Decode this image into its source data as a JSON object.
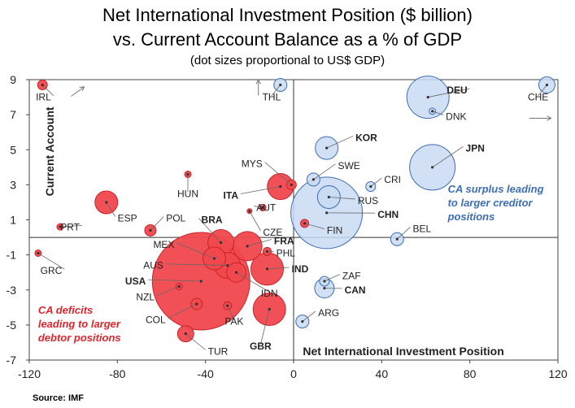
{
  "title_line1": "Net International Investment Position ($ billion)",
  "title_line2": "vs. Current Account Balance as a % of GDP",
  "subtitle": "(dot sizes proportional to US$ GDP)",
  "source": "Source: IMF",
  "chart_data": {
    "type": "scatter",
    "xlabel": "Net International Investment Position",
    "ylabel": "Current Account",
    "xlim": [
      -120,
      120
    ],
    "ylim": [
      -7,
      9
    ],
    "xticks": [
      -120,
      -80,
      -40,
      0,
      40,
      80,
      120
    ],
    "yticks": [
      -7,
      -5,
      -3,
      -1,
      1,
      3,
      5,
      7,
      9
    ],
    "grid": false,
    "quadrant_lines": {
      "x": 0,
      "y": 0
    },
    "colors": {
      "deficit_fill": "#f0484d",
      "deficit_stroke": "#c8252b",
      "surplus_fill": "#c9daf2",
      "surplus_stroke": "#3d6eb4",
      "annotation_deficit": "#e0262c",
      "annotation_surplus": "#3d6eb4"
    },
    "annotations": [
      {
        "text": "CA surplus leading",
        "group": "surplus"
      },
      {
        "text": "to larger creditor",
        "group": "surplus"
      },
      {
        "text": "positions",
        "group": "surplus"
      },
      {
        "text": "CA deficits",
        "group": "deficit"
      },
      {
        "text": "leading  to larger",
        "group": "deficit"
      },
      {
        "text": "debtor positions",
        "group": "deficit"
      }
    ],
    "points": [
      {
        "label": "IRL",
        "x": -114,
        "y": 8.7,
        "r": 6,
        "group": "deficit",
        "bold": false,
        "lx": -109,
        "ly": 7.9,
        "anchor": "end"
      },
      {
        "label": "GRC",
        "x": -116,
        "y": -0.9,
        "r": 4,
        "group": "deficit",
        "bold": false,
        "lx": -104,
        "ly": -2.0,
        "anchor": "end"
      },
      {
        "label": "PRT",
        "x": -106,
        "y": 0.6,
        "r": 4,
        "group": "deficit",
        "bold": false,
        "lx": -96,
        "ly": 0.5,
        "anchor": "end"
      },
      {
        "label": "ESP",
        "x": -85,
        "y": 2.0,
        "r": 14,
        "group": "deficit",
        "bold": false,
        "lx": -81,
        "ly": 1.0,
        "anchor": "start"
      },
      {
        "label": "POL",
        "x": -65,
        "y": 0.4,
        "r": 7,
        "group": "deficit",
        "bold": false,
        "lx": -59,
        "ly": 1.0,
        "anchor": "start"
      },
      {
        "label": "HUN",
        "x": -48,
        "y": 3.6,
        "r": 4,
        "group": "deficit",
        "bold": false,
        "lx": -48,
        "ly": 2.4,
        "anchor": "middle"
      },
      {
        "label": "BRA",
        "x": -33,
        "y": -0.3,
        "r": 16,
        "group": "deficit",
        "bold": true,
        "lx": -43,
        "ly": 0.9,
        "anchor": "start"
      },
      {
        "label": "ITA",
        "x": -6,
        "y": 2.9,
        "r": 16,
        "group": "deficit",
        "bold": true,
        "lx": -24,
        "ly": 2.3,
        "anchor": "end"
      },
      {
        "label": "MYS",
        "x": -1,
        "y": 3.0,
        "r": 6,
        "group": "deficit",
        "bold": false,
        "lx": -13,
        "ly": 4.1,
        "anchor": "end"
      },
      {
        "label": "AUT",
        "x": -14,
        "y": 1.7,
        "r": 4,
        "group": "deficit",
        "bold": false,
        "lx": -18,
        "ly": 1.6,
        "anchor": "start"
      },
      {
        "label": "CZE",
        "x": -20,
        "y": 1.5,
        "r": 3,
        "group": "deficit",
        "bold": false,
        "lx": -15,
        "ly": 0.2,
        "anchor": "start"
      },
      {
        "label": "FRA",
        "x": -21,
        "y": -0.5,
        "r": 18,
        "group": "deficit",
        "bold": true,
        "lx": -10,
        "ly": -0.3,
        "anchor": "start"
      },
      {
        "label": "PHL",
        "x": -12,
        "y": -0.8,
        "r": 5,
        "group": "deficit",
        "bold": false,
        "lx": -9,
        "ly": -1.0,
        "anchor": "start"
      },
      {
        "label": "MEX",
        "x": -36,
        "y": -1.2,
        "r": 14,
        "group": "deficit",
        "bold": false,
        "lx": -53,
        "ly": -0.5,
        "anchor": "end"
      },
      {
        "label": "AUS",
        "x": -30,
        "y": -1.6,
        "r": 16,
        "group": "deficit",
        "bold": false,
        "lx": -58,
        "ly": -1.7,
        "anchor": "end"
      },
      {
        "label": "IND",
        "x": -12,
        "y": -1.8,
        "r": 20,
        "group": "deficit",
        "bold": true,
        "lx": -2,
        "ly": -1.9,
        "anchor": "start"
      },
      {
        "label": "IDN",
        "x": -26,
        "y": -2.0,
        "r": 12,
        "group": "deficit",
        "bold": false,
        "lx": -11,
        "ly": -3.3,
        "anchor": "middle"
      },
      {
        "label": "USA",
        "x": -42,
        "y": -2.5,
        "r": 60,
        "group": "deficit",
        "bold": true,
        "lx": -66,
        "ly": -2.6,
        "anchor": "end"
      },
      {
        "label": "NZL",
        "x": -52,
        "y": -2.8,
        "r": 4,
        "group": "deficit",
        "bold": false,
        "lx": -62,
        "ly": -3.5,
        "anchor": "end"
      },
      {
        "label": "COL",
        "x": -44,
        "y": -3.8,
        "r": 7,
        "group": "deficit",
        "bold": false,
        "lx": -57,
        "ly": -4.8,
        "anchor": "end"
      },
      {
        "label": "PAK",
        "x": -30,
        "y": -3.9,
        "r": 5,
        "group": "deficit",
        "bold": false,
        "lx": -27,
        "ly": -4.9,
        "anchor": "middle"
      },
      {
        "label": "GBR",
        "x": -11,
        "y": -4.1,
        "r": 20,
        "group": "deficit",
        "bold": true,
        "lx": -15,
        "ly": -6.3,
        "anchor": "middle"
      },
      {
        "label": "TUR",
        "x": -49,
        "y": -5.5,
        "r": 10,
        "group": "deficit",
        "bold": false,
        "lx": -40,
        "ly": -6.6,
        "anchor": "start"
      },
      {
        "label": "FIN",
        "x": 5,
        "y": 0.8,
        "r": 5,
        "group": "deficit",
        "bold": false,
        "lx": 14,
        "ly": 0.3,
        "anchor": "start"
      },
      {
        "label": "THL",
        "x": -6,
        "y": 8.7,
        "r": 8,
        "group": "surplus",
        "bold": false,
        "lx": -10,
        "ly": 7.9,
        "anchor": "middle"
      },
      {
        "label": "DEU",
        "x": 61,
        "y": 8.0,
        "r": 26,
        "group": "surplus",
        "bold": true,
        "lx": 80,
        "ly": 8.3,
        "anchor": "end"
      },
      {
        "label": "DNK",
        "x": 63,
        "y": 7.2,
        "r": 4,
        "group": "surplus",
        "bold": false,
        "lx": 68,
        "ly": 6.8,
        "anchor": "start"
      },
      {
        "label": "CHE",
        "x": 115,
        "y": 8.7,
        "r": 10,
        "group": "surplus",
        "bold": false,
        "lx": 111,
        "ly": 7.9,
        "anchor": "middle"
      },
      {
        "label": "KOR",
        "x": 15,
        "y": 5.1,
        "r": 14,
        "group": "surplus",
        "bold": true,
        "lx": 27,
        "ly": 5.6,
        "anchor": "start"
      },
      {
        "label": "JPN",
        "x": 63,
        "y": 4.0,
        "r": 28,
        "group": "surplus",
        "bold": true,
        "lx": 77,
        "ly": 5.0,
        "anchor": "start"
      },
      {
        "label": "SWE",
        "x": 9,
        "y": 3.3,
        "r": 8,
        "group": "surplus",
        "bold": false,
        "lx": 19,
        "ly": 4.0,
        "anchor": "start"
      },
      {
        "label": "CRI",
        "x": 35,
        "y": 2.9,
        "r": 6,
        "group": "surplus",
        "bold": false,
        "lx": 40,
        "ly": 3.2,
        "anchor": "start"
      },
      {
        "label": "RUS",
        "x": 16,
        "y": 2.3,
        "r": 14,
        "group": "surplus",
        "bold": false,
        "lx": 28,
        "ly": 2.0,
        "anchor": "start"
      },
      {
        "label": "CHN",
        "x": 15,
        "y": 1.4,
        "r": 44,
        "group": "surplus",
        "bold": true,
        "lx": 37,
        "ly": 1.2,
        "anchor": "start"
      },
      {
        "label": "BEL",
        "x": 47,
        "y": -0.1,
        "r": 8,
        "group": "surplus",
        "bold": false,
        "lx": 53,
        "ly": 0.4,
        "anchor": "start"
      },
      {
        "label": "ZAF",
        "x": 14,
        "y": -2.5,
        "r": 6,
        "group": "surplus",
        "bold": false,
        "lx": 21,
        "ly": -2.3,
        "anchor": "start"
      },
      {
        "label": "CAN",
        "x": 14,
        "y": -2.9,
        "r": 12,
        "group": "surplus",
        "bold": true,
        "lx": 22,
        "ly": -3.1,
        "anchor": "start"
      },
      {
        "label": "ARG",
        "x": 4,
        "y": -4.8,
        "r": 8,
        "group": "surplus",
        "bold": false,
        "lx": 10,
        "ly": -4.4,
        "anchor": "start"
      }
    ]
  }
}
